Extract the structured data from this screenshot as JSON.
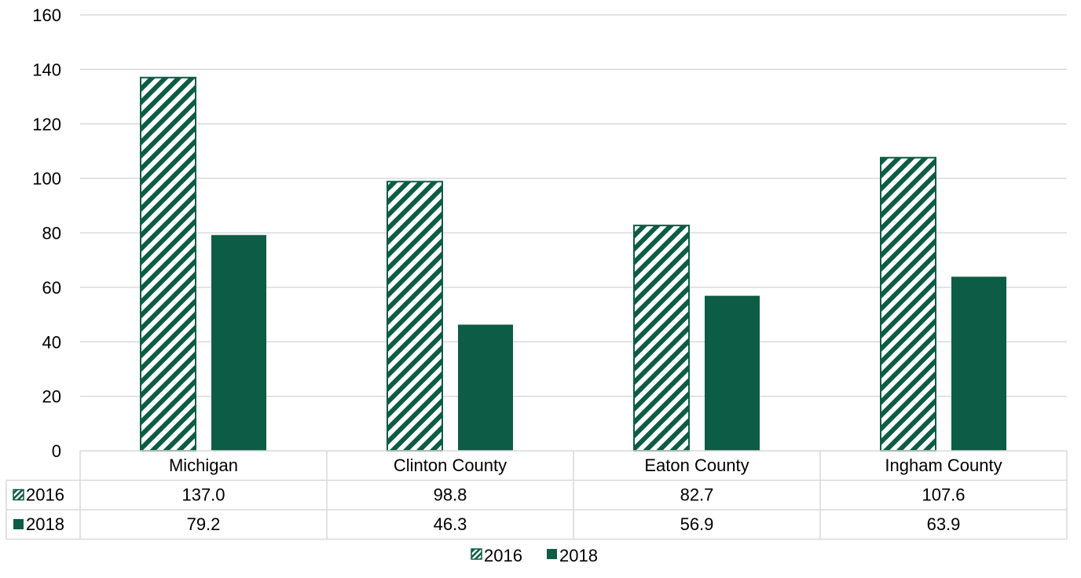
{
  "chart_data": {
    "type": "bar",
    "categories": [
      "Michigan",
      "Clinton County",
      "Eaton County",
      "Ingham County"
    ],
    "series": [
      {
        "name": "2016",
        "values": [
          137.0,
          98.8,
          82.7,
          107.6
        ],
        "pattern": "diagonal-hatch",
        "color": "#0d5c45"
      },
      {
        "name": "2018",
        "values": [
          79.2,
          46.3,
          56.9,
          63.9
        ],
        "pattern": "solid",
        "color": "#0d5c45"
      }
    ],
    "value_labels": [
      [
        "137.0",
        "98.8",
        "82.7",
        "107.6"
      ],
      [
        "79.2",
        "46.3",
        "56.9",
        "63.9"
      ]
    ],
    "ylim": [
      0,
      160
    ],
    "yticks": [
      0,
      20,
      40,
      60,
      80,
      100,
      120,
      140,
      160
    ],
    "grid": true,
    "data_table": true,
    "legend": "bottom",
    "title": "",
    "xlabel": "",
    "ylabel": ""
  }
}
